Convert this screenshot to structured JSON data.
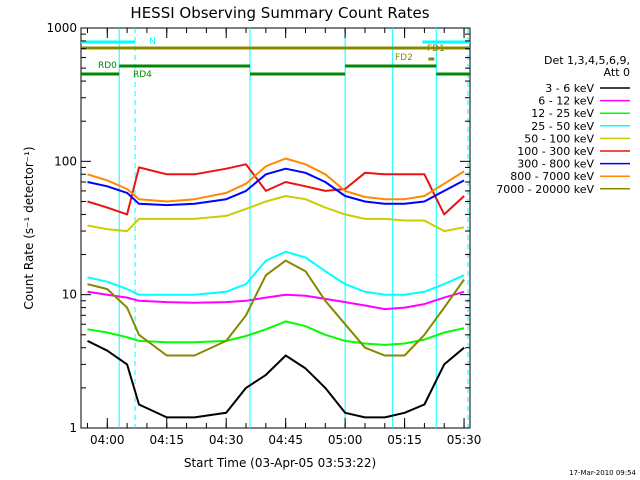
{
  "chart_data": {
    "type": "line",
    "title": "HESSI Observing Summary Count Rates",
    "xlabel": "Start Time (03-Apr-05 03:53:22)",
    "ylabel": "Count Rate (s⁻¹ detector⁻¹)",
    "yscale": "log",
    "ylim": [
      1,
      1000
    ],
    "xlim": [
      "03:53:22",
      "05:31:30"
    ],
    "xticks": [
      "04:00",
      "04:15",
      "04:30",
      "04:45",
      "05:00",
      "05:15",
      "05:30"
    ],
    "yticks": [
      "1",
      "10",
      "100",
      "1000"
    ],
    "footer_date": "17-Mar-2010 09:54",
    "legend": {
      "position": "right",
      "header": [
        "Det 1,3,4,5,6,9,",
        "Att 0"
      ],
      "entries": [
        {
          "label": "3 - 6 keV",
          "color": "#000000"
        },
        {
          "label": "6 - 12 keV",
          "color": "#ff00ff"
        },
        {
          "label": "12 - 25 keV",
          "color": "#00ff00"
        },
        {
          "label": "25 - 50 keV",
          "color": "#00ffff"
        },
        {
          "label": "50 - 100 keV",
          "color": "#cccc00"
        },
        {
          "label": "100 - 300 keV",
          "color": "#ee1111"
        },
        {
          "label": "300 - 800 keV",
          "color": "#0000ff"
        },
        {
          "label": "800 - 7000 keV",
          "color": "#ff8800"
        },
        {
          "label": "7000 - 20000 keV",
          "color": "#888800"
        }
      ]
    },
    "flags": [
      {
        "label": "N",
        "color": "#00ffff",
        "segments": [
          [
            "03:53:22",
            "04:07:00"
          ],
          [
            "05:19:30",
            "05:31:30"
          ]
        ]
      },
      {
        "label": "FD1",
        "color": "#888800",
        "segments": [
          [
            "03:53:22",
            "05:31:30"
          ]
        ]
      },
      {
        "label": "FD2",
        "color": "#888800",
        "segments": [
          [
            "05:21:00",
            "05:22:30"
          ]
        ]
      },
      {
        "label": "RD0",
        "color": "#008800",
        "segments": [
          [
            "04:03:00",
            "04:36:00"
          ],
          [
            "05:00:00",
            "05:23:00"
          ]
        ]
      },
      {
        "label": "RD4",
        "color": "#008800",
        "segments": [
          [
            "03:53:22",
            "04:03:00"
          ],
          [
            "04:36:00",
            "05:00:00"
          ],
          [
            "05:23:00",
            "05:31:30"
          ]
        ]
      }
    ],
    "vertical_lines": {
      "solid": [
        "04:03:00",
        "04:36:00",
        "05:00:00",
        "05:12:00",
        "05:23:00"
      ],
      "dashed": [
        "04:07:00",
        "05:31:00"
      ]
    },
    "x": [
      "03:55",
      "04:00",
      "04:05",
      "04:08",
      "04:15",
      "04:22",
      "04:30",
      "04:35",
      "04:40",
      "04:45",
      "04:50",
      "04:55",
      "05:00",
      "05:05",
      "05:10",
      "05:15",
      "05:20",
      "05:25",
      "05:30"
    ],
    "series": [
      {
        "name": "3 - 6 keV",
        "color": "#000000",
        "values": [
          4.5,
          3.8,
          3.0,
          1.5,
          1.2,
          1.2,
          1.3,
          2.0,
          2.5,
          3.5,
          2.8,
          2.0,
          1.3,
          1.2,
          1.2,
          1.3,
          1.5,
          3.0,
          4.0
        ]
      },
      {
        "name": "6 - 12 keV",
        "color": "#ff00ff",
        "values": [
          10.5,
          10.0,
          9.5,
          9.0,
          8.8,
          8.7,
          8.8,
          9.0,
          9.5,
          10.0,
          9.8,
          9.3,
          8.8,
          8.3,
          7.8,
          8.0,
          8.5,
          9.5,
          10.5
        ]
      },
      {
        "name": "12 - 25 keV",
        "color": "#00ff00",
        "values": [
          5.5,
          5.2,
          4.8,
          4.5,
          4.4,
          4.4,
          4.5,
          4.9,
          5.5,
          6.3,
          5.8,
          5.0,
          4.5,
          4.3,
          4.2,
          4.3,
          4.6,
          5.2,
          5.6
        ]
      },
      {
        "name": "25 - 50 keV",
        "color": "#00ffff",
        "values": [
          13.5,
          12.5,
          11.0,
          10.0,
          10.0,
          10.0,
          10.5,
          12.0,
          18.0,
          21.0,
          19.0,
          15.0,
          12.0,
          10.5,
          10.0,
          10.0,
          10.5,
          12.0,
          14.0
        ]
      },
      {
        "name": "50 - 100 keV",
        "color": "#cccc00",
        "values": [
          33,
          31,
          30,
          37,
          37,
          37,
          39,
          44,
          50,
          55,
          52,
          45,
          40,
          37,
          37,
          36,
          36,
          30,
          32
        ]
      },
      {
        "name": "100 - 300 keV",
        "color": "#ee1111",
        "values": [
          50,
          45,
          40,
          90,
          80,
          80,
          88,
          95,
          60,
          70,
          65,
          60,
          62,
          82,
          80,
          80,
          80,
          40,
          55
        ]
      },
      {
        "name": "300 - 800 keV",
        "color": "#0000ff",
        "values": [
          70,
          65,
          58,
          48,
          47,
          48,
          52,
          60,
          80,
          88,
          82,
          70,
          55,
          50,
          48,
          48,
          50,
          60,
          72
        ]
      },
      {
        "name": "800 - 7000 keV",
        "color": "#ff8800",
        "values": [
          80,
          72,
          62,
          52,
          50,
          52,
          58,
          68,
          92,
          105,
          95,
          80,
          60,
          54,
          52,
          52,
          55,
          68,
          84
        ]
      },
      {
        "name": "7000 - 20000 keV",
        "color": "#888800",
        "values": [
          12,
          11,
          8,
          5,
          3.5,
          3.5,
          4.5,
          7,
          14,
          18,
          15,
          9,
          6,
          4,
          3.5,
          3.5,
          5,
          8,
          13
        ]
      }
    ]
  }
}
